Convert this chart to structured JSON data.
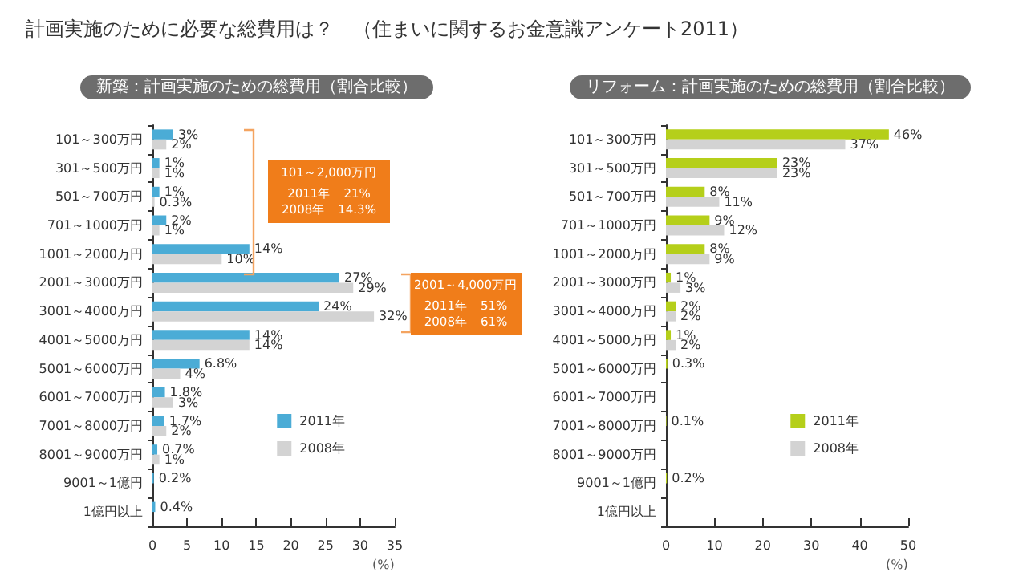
{
  "chart_data": [
    {
      "type": "bar",
      "orientation": "horizontal",
      "title": "計画実施のために必要な総費用は？　（住まいに関するお金意識アンケート2011）",
      "subtitle": "新築：計画実施のための総費用（割合比較）",
      "xlabel": "(%)",
      "categories": [
        "101～300万円",
        "301～500万円",
        "501～700万円",
        "701～1000万円",
        "1001～2000万円",
        "2001～3000万円",
        "3001～4000万円",
        "4001～5000万円",
        "5001～6000万円",
        "6001～7000万円",
        "7001～8000万円",
        "8001～9000万円",
        "9001～1億円",
        "1億円以上"
      ],
      "series": [
        {
          "name": "2011年",
          "color": "#4bacd6",
          "values": [
            3,
            1,
            1,
            2,
            14,
            27,
            24,
            14,
            6.8,
            1.8,
            1.7,
            0.7,
            0.2,
            0.4
          ],
          "value_labels": [
            "3%",
            "1%",
            "1%",
            "2%",
            "14%",
            "27%",
            "24%",
            "14%",
            "6.8%",
            "1.8%",
            "1.7%",
            "0.7%",
            "0.2%",
            "0.4%"
          ]
        },
        {
          "name": "2008年",
          "color": "#d3d3d3",
          "values": [
            2,
            1,
            0.3,
            1,
            10,
            29,
            32,
            14,
            4,
            3,
            2,
            1,
            null,
            null
          ],
          "value_labels": [
            "2%",
            "1%",
            "0.3%",
            "1%",
            "10%",
            "29%",
            "32%",
            "14%",
            "4%",
            "3%",
            "2%",
            "1%",
            null,
            null
          ]
        }
      ],
      "xlim": [
        0,
        35
      ],
      "xticks": [
        0,
        5,
        10,
        15,
        20,
        25,
        30,
        35
      ],
      "grid": false,
      "legend": "bottom right",
      "annotations": [
        "101～2,000万円\n2011年　21%\n2008年　14.3%",
        "2001～4,000万円\n2011年　51%\n2008年　61%"
      ]
    },
    {
      "type": "bar",
      "orientation": "horizontal",
      "subtitle": "リフォーム：計画実施のための総費用（割合比較）",
      "xlabel": "(%)",
      "categories": [
        "101～300万円",
        "301～500万円",
        "501～700万円",
        "701～1000万円",
        "1001～2000万円",
        "2001～3000万円",
        "3001～4000万円",
        "4001～5000万円",
        "5001～6000万円",
        "6001～7000万円",
        "7001～8000万円",
        "8001～9000万円",
        "9001～1億円",
        "1億円以上"
      ],
      "series": [
        {
          "name": "2011年",
          "color": "#b5cf1a",
          "values": [
            46,
            23,
            8,
            9,
            8,
            1,
            2,
            1,
            0.3,
            null,
            0.1,
            null,
            0.2,
            null
          ],
          "value_labels": [
            "46%",
            "23%",
            "8%",
            "9%",
            "8%",
            "1%",
            "2%",
            "1%",
            "0.3%",
            null,
            "0.1%",
            null,
            "0.2%",
            null
          ]
        },
        {
          "name": "2008年",
          "color": "#d3d3d3",
          "values": [
            37,
            23,
            11,
            12,
            9,
            3,
            2,
            2,
            null,
            null,
            null,
            null,
            null,
            null
          ],
          "value_labels": [
            "37%",
            "23%",
            "11%",
            "12%",
            "9%",
            "3%",
            "2%",
            "2%",
            null,
            null,
            null,
            null,
            null,
            null
          ]
        }
      ],
      "xlim": [
        0,
        50
      ],
      "xticks": [
        0,
        10,
        20,
        30,
        40,
        50
      ],
      "grid": false,
      "legend": "bottom right"
    }
  ]
}
